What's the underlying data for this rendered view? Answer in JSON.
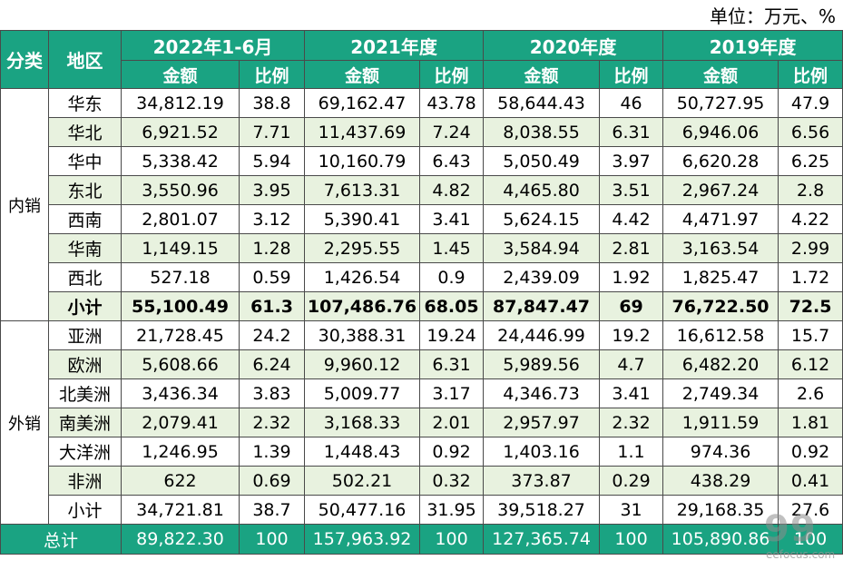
{
  "unit_label": "单位：万元、%",
  "header": {
    "category": "分类",
    "region": "地区",
    "periods": [
      "2022年1-6月",
      "2021年度",
      "2020年度",
      "2019年度"
    ],
    "amount": "金额",
    "ratio": "比例"
  },
  "groups": [
    {
      "name": "内销",
      "rows": [
        {
          "region": "华东",
          "v": [
            "34,812.19",
            "38.8",
            "69,162.47",
            "43.78",
            "58,644.43",
            "46",
            "50,727.95",
            "47.9"
          ]
        },
        {
          "region": "华北",
          "v": [
            "6,921.52",
            "7.71",
            "11,437.69",
            "7.24",
            "8,038.55",
            "6.31",
            "6,946.06",
            "6.56"
          ]
        },
        {
          "region": "华中",
          "v": [
            "5,338.42",
            "5.94",
            "10,160.79",
            "6.43",
            "5,050.49",
            "3.97",
            "6,620.28",
            "6.25"
          ]
        },
        {
          "region": "东北",
          "v": [
            "3,550.96",
            "3.95",
            "7,613.31",
            "4.82",
            "4,465.80",
            "3.51",
            "2,967.24",
            "2.8"
          ]
        },
        {
          "region": "西南",
          "v": [
            "2,801.07",
            "3.12",
            "5,390.41",
            "3.41",
            "5,624.15",
            "4.42",
            "4,471.97",
            "4.22"
          ]
        },
        {
          "region": "华南",
          "v": [
            "1,149.15",
            "1.28",
            "2,295.55",
            "1.45",
            "3,584.94",
            "2.81",
            "3,163.54",
            "2.99"
          ]
        },
        {
          "region": "西北",
          "v": [
            "527.18",
            "0.59",
            "1,426.54",
            "0.9",
            "2,439.09",
            "1.92",
            "1,825.47",
            "1.72"
          ]
        },
        {
          "region": "小计",
          "v": [
            "55,100.49",
            "61.3",
            "107,486.76",
            "68.05",
            "87,847.47",
            "69",
            "76,722.50",
            "72.5"
          ],
          "bold": true
        }
      ]
    },
    {
      "name": "外销",
      "rows": [
        {
          "region": "亚洲",
          "v": [
            "21,728.45",
            "24.2",
            "30,388.31",
            "19.24",
            "24,446.99",
            "19.2",
            "16,612.58",
            "15.7"
          ]
        },
        {
          "region": "欧洲",
          "v": [
            "5,608.66",
            "6.24",
            "9,960.12",
            "6.31",
            "5,989.56",
            "4.7",
            "6,482.20",
            "6.12"
          ]
        },
        {
          "region": "北美洲",
          "v": [
            "3,436.34",
            "3.83",
            "5,009.77",
            "3.17",
            "4,346.73",
            "3.41",
            "2,749.34",
            "2.6"
          ]
        },
        {
          "region": "南美洲",
          "v": [
            "2,079.41",
            "2.32",
            "3,168.33",
            "2.01",
            "2,957.97",
            "2.32",
            "1,911.59",
            "1.81"
          ]
        },
        {
          "region": "大洋洲",
          "v": [
            "1,246.95",
            "1.39",
            "1,448.43",
            "0.92",
            "1,403.16",
            "1.1",
            "974.36",
            "0.92"
          ]
        },
        {
          "region": "非洲",
          "v": [
            "622",
            "0.69",
            "502.21",
            "0.32",
            "373.87",
            "0.29",
            "438.29",
            "0.41"
          ]
        },
        {
          "region": "小计",
          "v": [
            "34,721.81",
            "38.7",
            "50,477.16",
            "31.95",
            "39,518.27",
            "31",
            "29,168.35",
            "27.6"
          ]
        }
      ]
    }
  ],
  "total": {
    "label": "总计",
    "v": [
      "89,822.30",
      "100",
      "157,963.92",
      "100",
      "127,365.74",
      "100",
      "105,890.86",
      "100"
    ]
  },
  "watermark": {
    "big": "99",
    "small": "eefocus.com"
  }
}
